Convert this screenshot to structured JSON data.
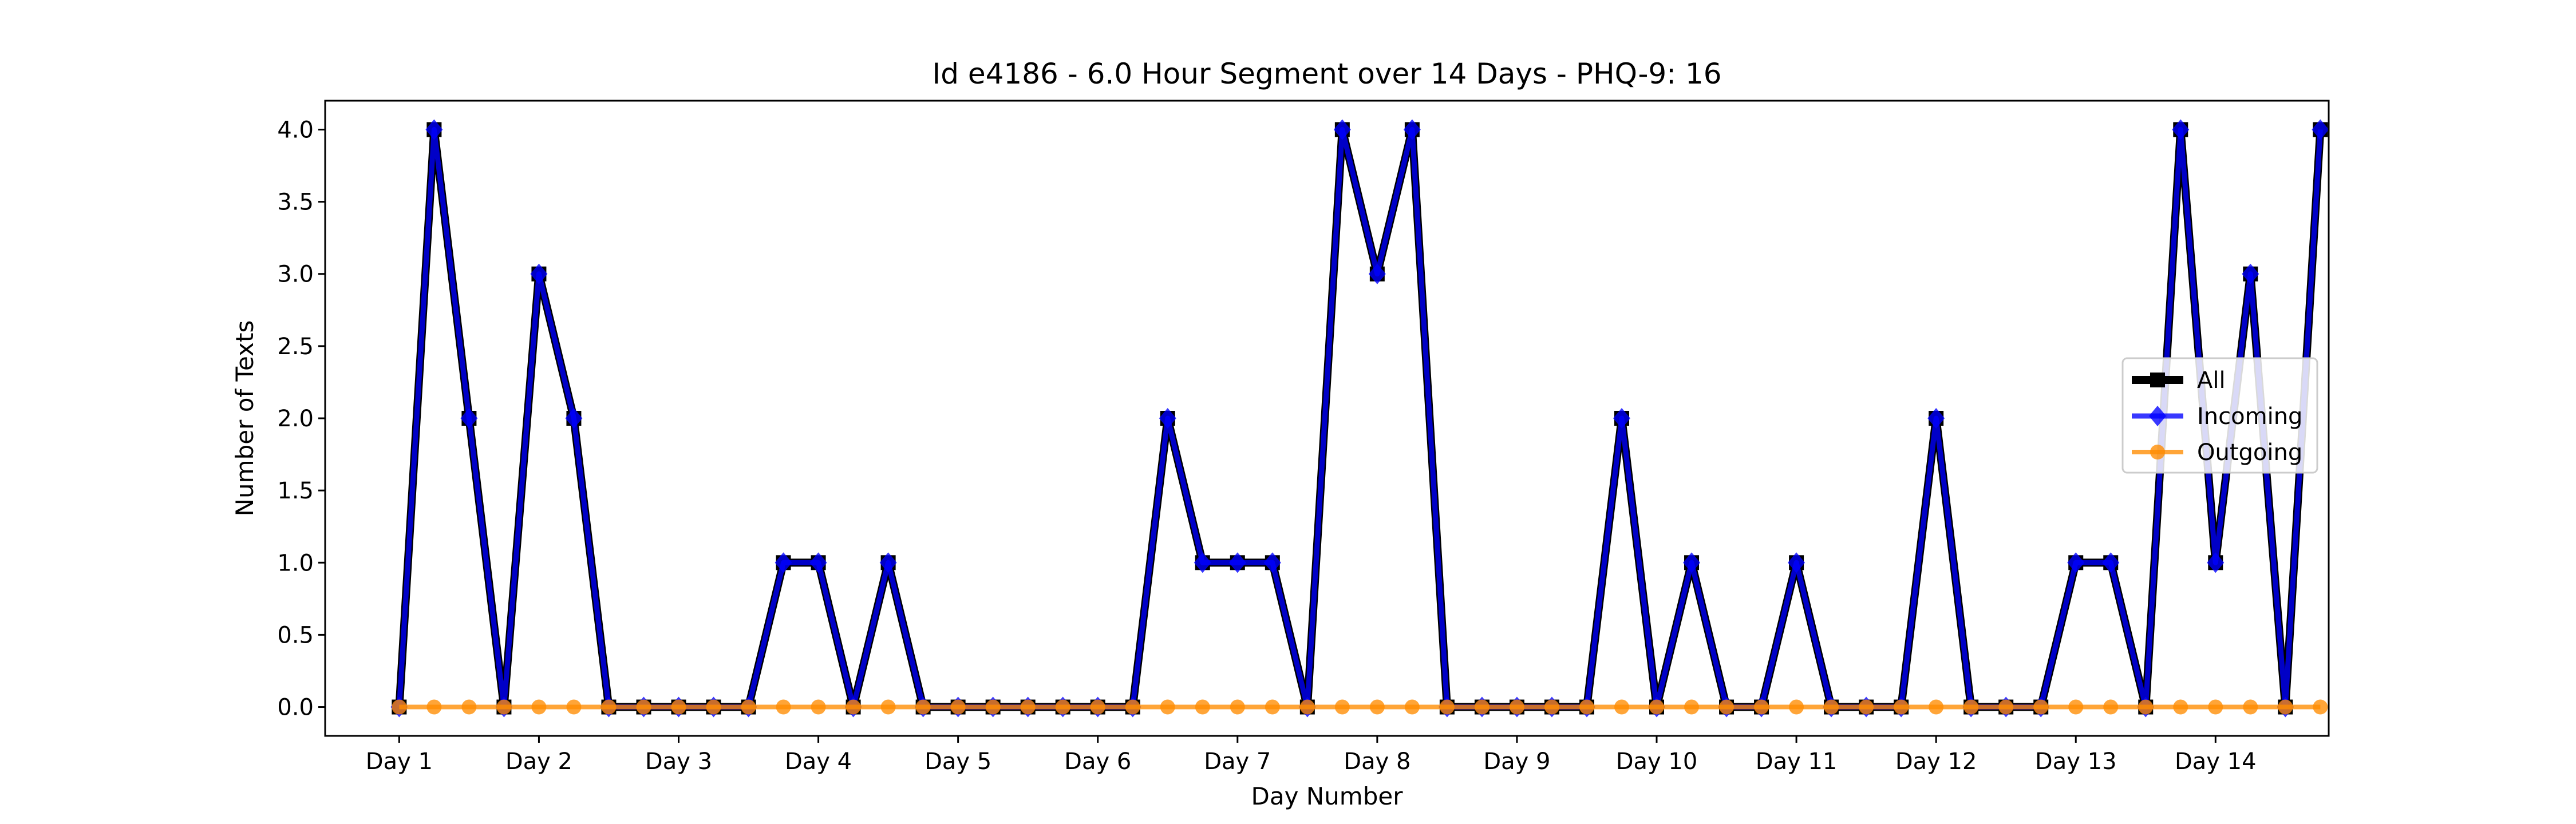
{
  "chart_data": {
    "type": "line",
    "title": "Id e4186 - 6.0 Hour Segment over 14 Days - PHQ-9: 16",
    "xlabel": "Day Number",
    "ylabel": "Number of Texts",
    "ylim": [
      -0.2,
      4.2
    ],
    "yticks": [
      "0.0",
      "0.5",
      "1.0",
      "1.5",
      "2.0",
      "2.5",
      "3.0",
      "3.5",
      "4.0"
    ],
    "xticks": [
      "Day 1",
      "Day 2",
      "Day 3",
      "Day 4",
      "Day 5",
      "Day 6",
      "Day 7",
      "Day 8",
      "Day 9",
      "Day 10",
      "Day 11",
      "Day 12",
      "Day 13",
      "Day 14"
    ],
    "grid": false,
    "legend_position": "center-right",
    "series": [
      {
        "name": "All",
        "color": "#000000",
        "marker": "square",
        "values": [
          0,
          4,
          2,
          0,
          3,
          2,
          0,
          0,
          0,
          0,
          0,
          1,
          1,
          0,
          1,
          0,
          0,
          0,
          0,
          0,
          0,
          0,
          2,
          1,
          1,
          1,
          0,
          4,
          3,
          4,
          0,
          0,
          0,
          0,
          0,
          2,
          0,
          1,
          0,
          0,
          1,
          0,
          0,
          0,
          2,
          0,
          0,
          0,
          1,
          1,
          0,
          4,
          1,
          3,
          0,
          4
        ]
      },
      {
        "name": "Incoming",
        "color": "#0000ff",
        "marker": "diamond",
        "values": [
          0,
          4,
          2,
          0,
          3,
          2,
          0,
          0,
          0,
          0,
          0,
          1,
          1,
          0,
          1,
          0,
          0,
          0,
          0,
          0,
          0,
          0,
          2,
          1,
          1,
          1,
          0,
          4,
          3,
          4,
          0,
          0,
          0,
          0,
          0,
          2,
          0,
          1,
          0,
          0,
          1,
          0,
          0,
          0,
          2,
          0,
          0,
          0,
          1,
          1,
          0,
          4,
          1,
          3,
          0,
          4
        ]
      },
      {
        "name": "Outgoing",
        "color": "#ff8c00",
        "marker": "circle",
        "values": [
          0,
          0,
          0,
          0,
          0,
          0,
          0,
          0,
          0,
          0,
          0,
          0,
          0,
          0,
          0,
          0,
          0,
          0,
          0,
          0,
          0,
          0,
          0,
          0,
          0,
          0,
          0,
          0,
          0,
          0,
          0,
          0,
          0,
          0,
          0,
          0,
          0,
          0,
          0,
          0,
          0,
          0,
          0,
          0,
          0,
          0,
          0,
          0,
          0,
          0,
          0,
          0,
          0,
          0,
          0,
          0
        ]
      }
    ]
  }
}
